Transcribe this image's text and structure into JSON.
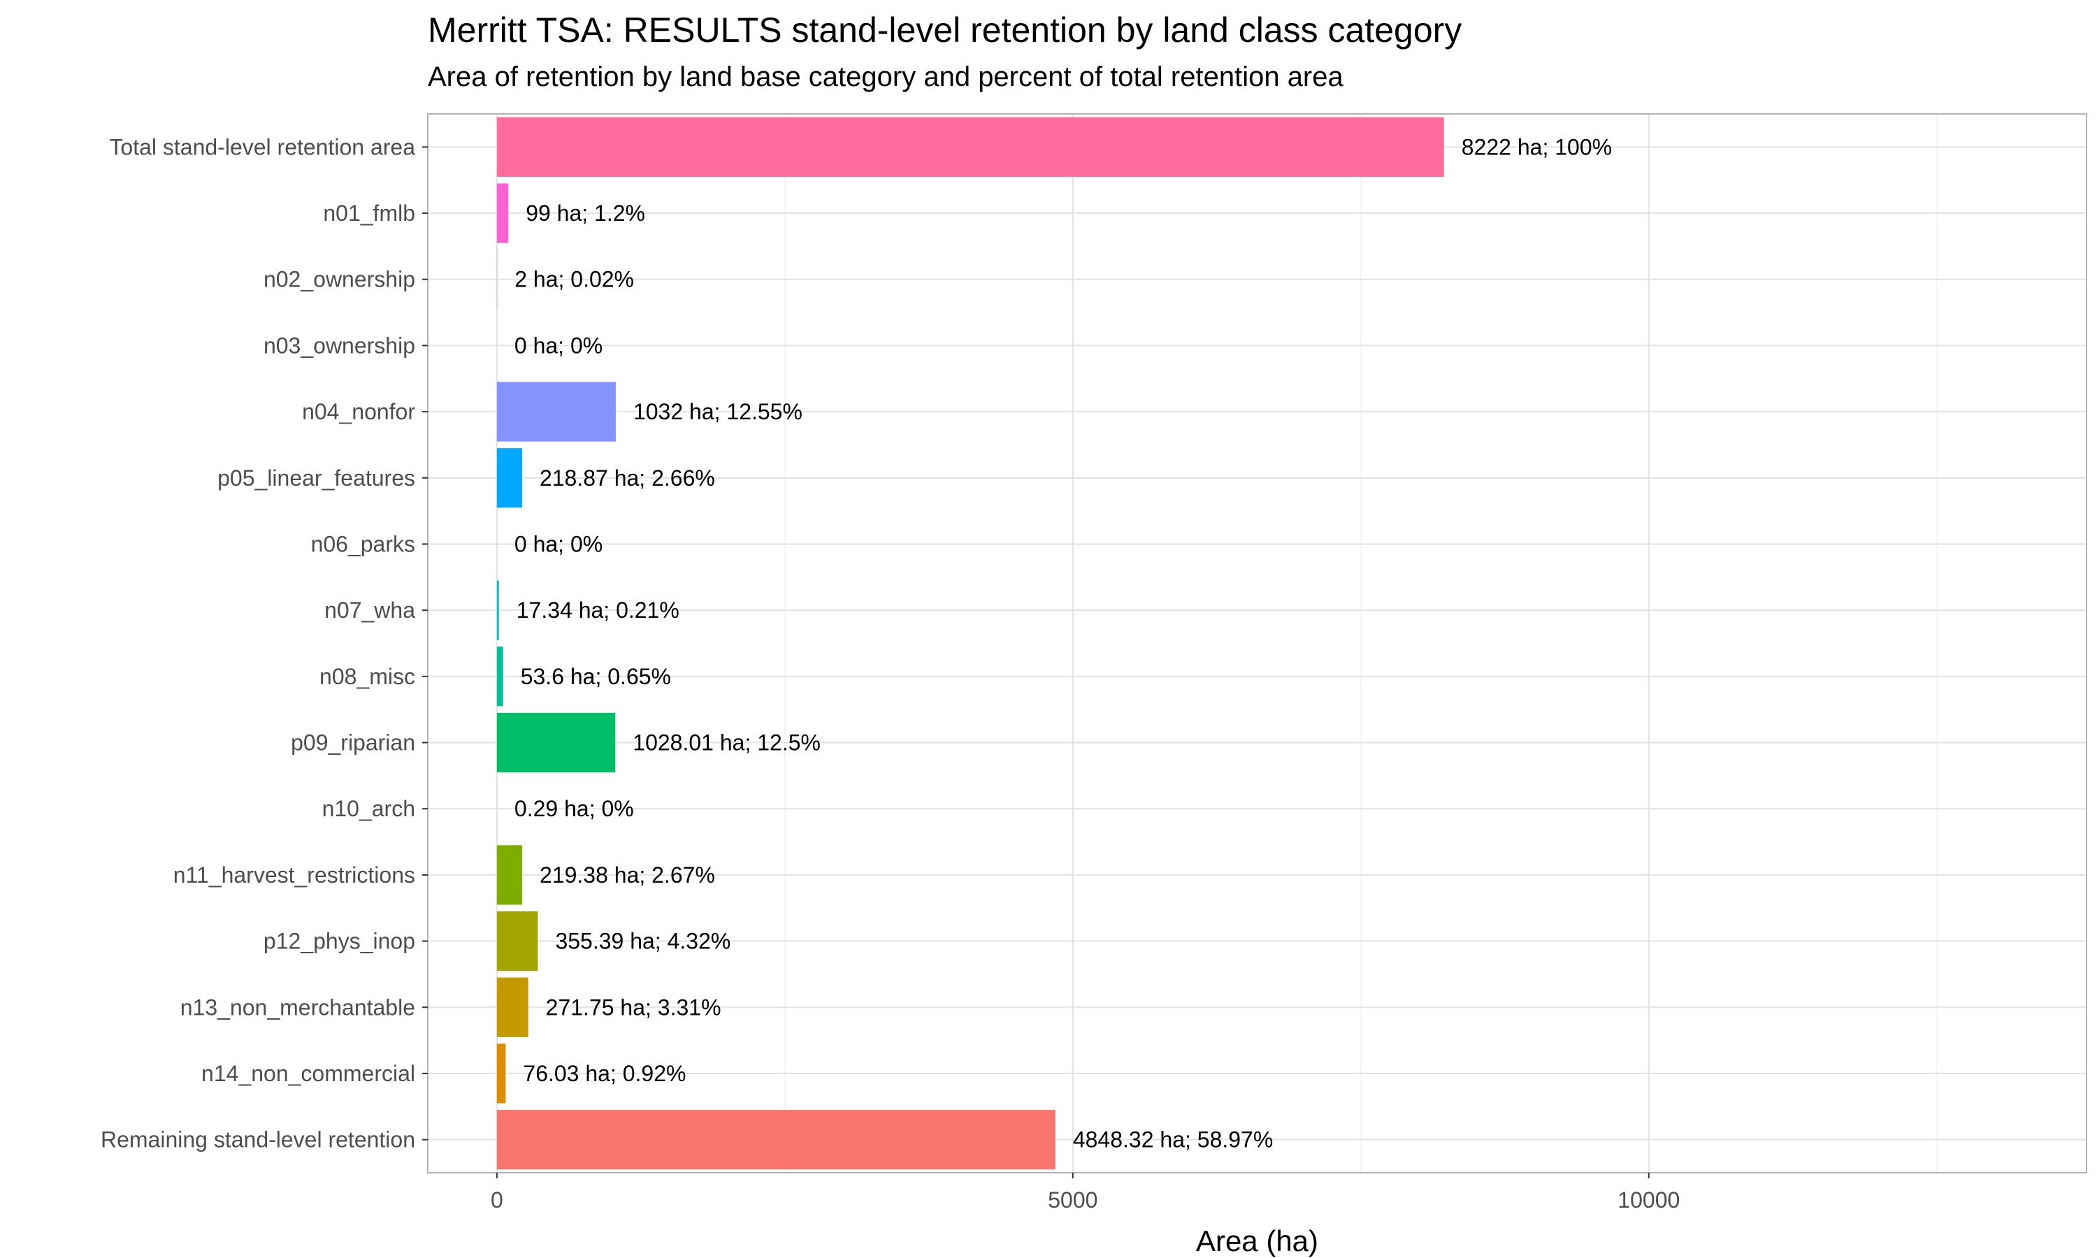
{
  "chart_data": {
    "type": "bar",
    "orientation": "horizontal",
    "title": "Merritt TSA: RESULTS stand-level retention by land class category",
    "subtitle": "Area of retention by land base category and percent of total retention area",
    "xlabel": "Area (ha)",
    "ylabel": "",
    "xlim": [
      -600,
      13800
    ],
    "xticks": [
      0,
      5000,
      10000
    ],
    "grid": true,
    "legend": "none",
    "categories": [
      "Total stand-level retention area",
      "n01_fmlb",
      "n02_ownership",
      "n03_ownership",
      "n04_nonfor",
      "p05_linear_features",
      "n06_parks",
      "n07_wha",
      "n08_misc",
      "p09_riparian",
      "n10_arch",
      "n11_harvest_restrictions",
      "p12_phys_inop",
      "n13_non_merchantable",
      "n14_non_commercial",
      "Remaining stand-level retention"
    ],
    "values": [
      8222,
      99,
      2,
      0,
      1032,
      218.87,
      0,
      17.34,
      53.6,
      1028.01,
      0.29,
      219.38,
      355.39,
      271.75,
      76.03,
      4848.32
    ],
    "labels": [
      "8222 ha; 100%",
      "99 ha; 1.2%",
      "2 ha; 0.02%",
      "0 ha; 0%",
      "1032 ha; 12.55%",
      "218.87 ha; 2.66%",
      "0 ha; 0%",
      "17.34 ha; 0.21%",
      "53.6 ha; 0.65%",
      "1028.01 ha; 12.5%",
      "0.29 ha; 0%",
      "219.38 ha; 2.67%",
      "355.39 ha; 4.32%",
      "271.75 ha; 3.31%",
      "76.03 ha; 0.92%",
      "4848.32 ha; 58.97%"
    ],
    "colors": [
      "#FF6C9C",
      "#FC61D5",
      "#E36EF6",
      "#B983FF",
      "#8494FF",
      "#00A9FF",
      "#00B8E7",
      "#00BFC4",
      "#00C19A",
      "#00BE67",
      "#00BA38",
      "#7CAE00",
      "#A3A500",
      "#C49A00",
      "#DE8C00",
      "#F8766D"
    ]
  }
}
